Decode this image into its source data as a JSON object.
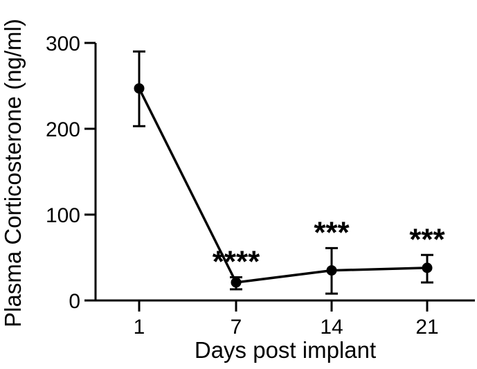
{
  "chart_data": {
    "type": "line",
    "xlabel": "Days post implant",
    "ylabel": "Plasma Corticosterone (ng/ml)",
    "categories": [
      "1",
      "7",
      "14",
      "21"
    ],
    "ylim": [
      0,
      300
    ],
    "yticks": [
      0,
      100,
      200,
      300
    ],
    "grid": false,
    "series": [
      {
        "values": [
          247,
          21,
          35,
          38
        ],
        "error_low": [
          203,
          13,
          8,
          21
        ],
        "error_high": [
          290,
          27,
          61,
          53
        ],
        "annotations": [
          "",
          "****",
          "***",
          "***"
        ]
      }
    ],
    "colors": {
      "line": "#000000",
      "marker": "#000000"
    }
  }
}
